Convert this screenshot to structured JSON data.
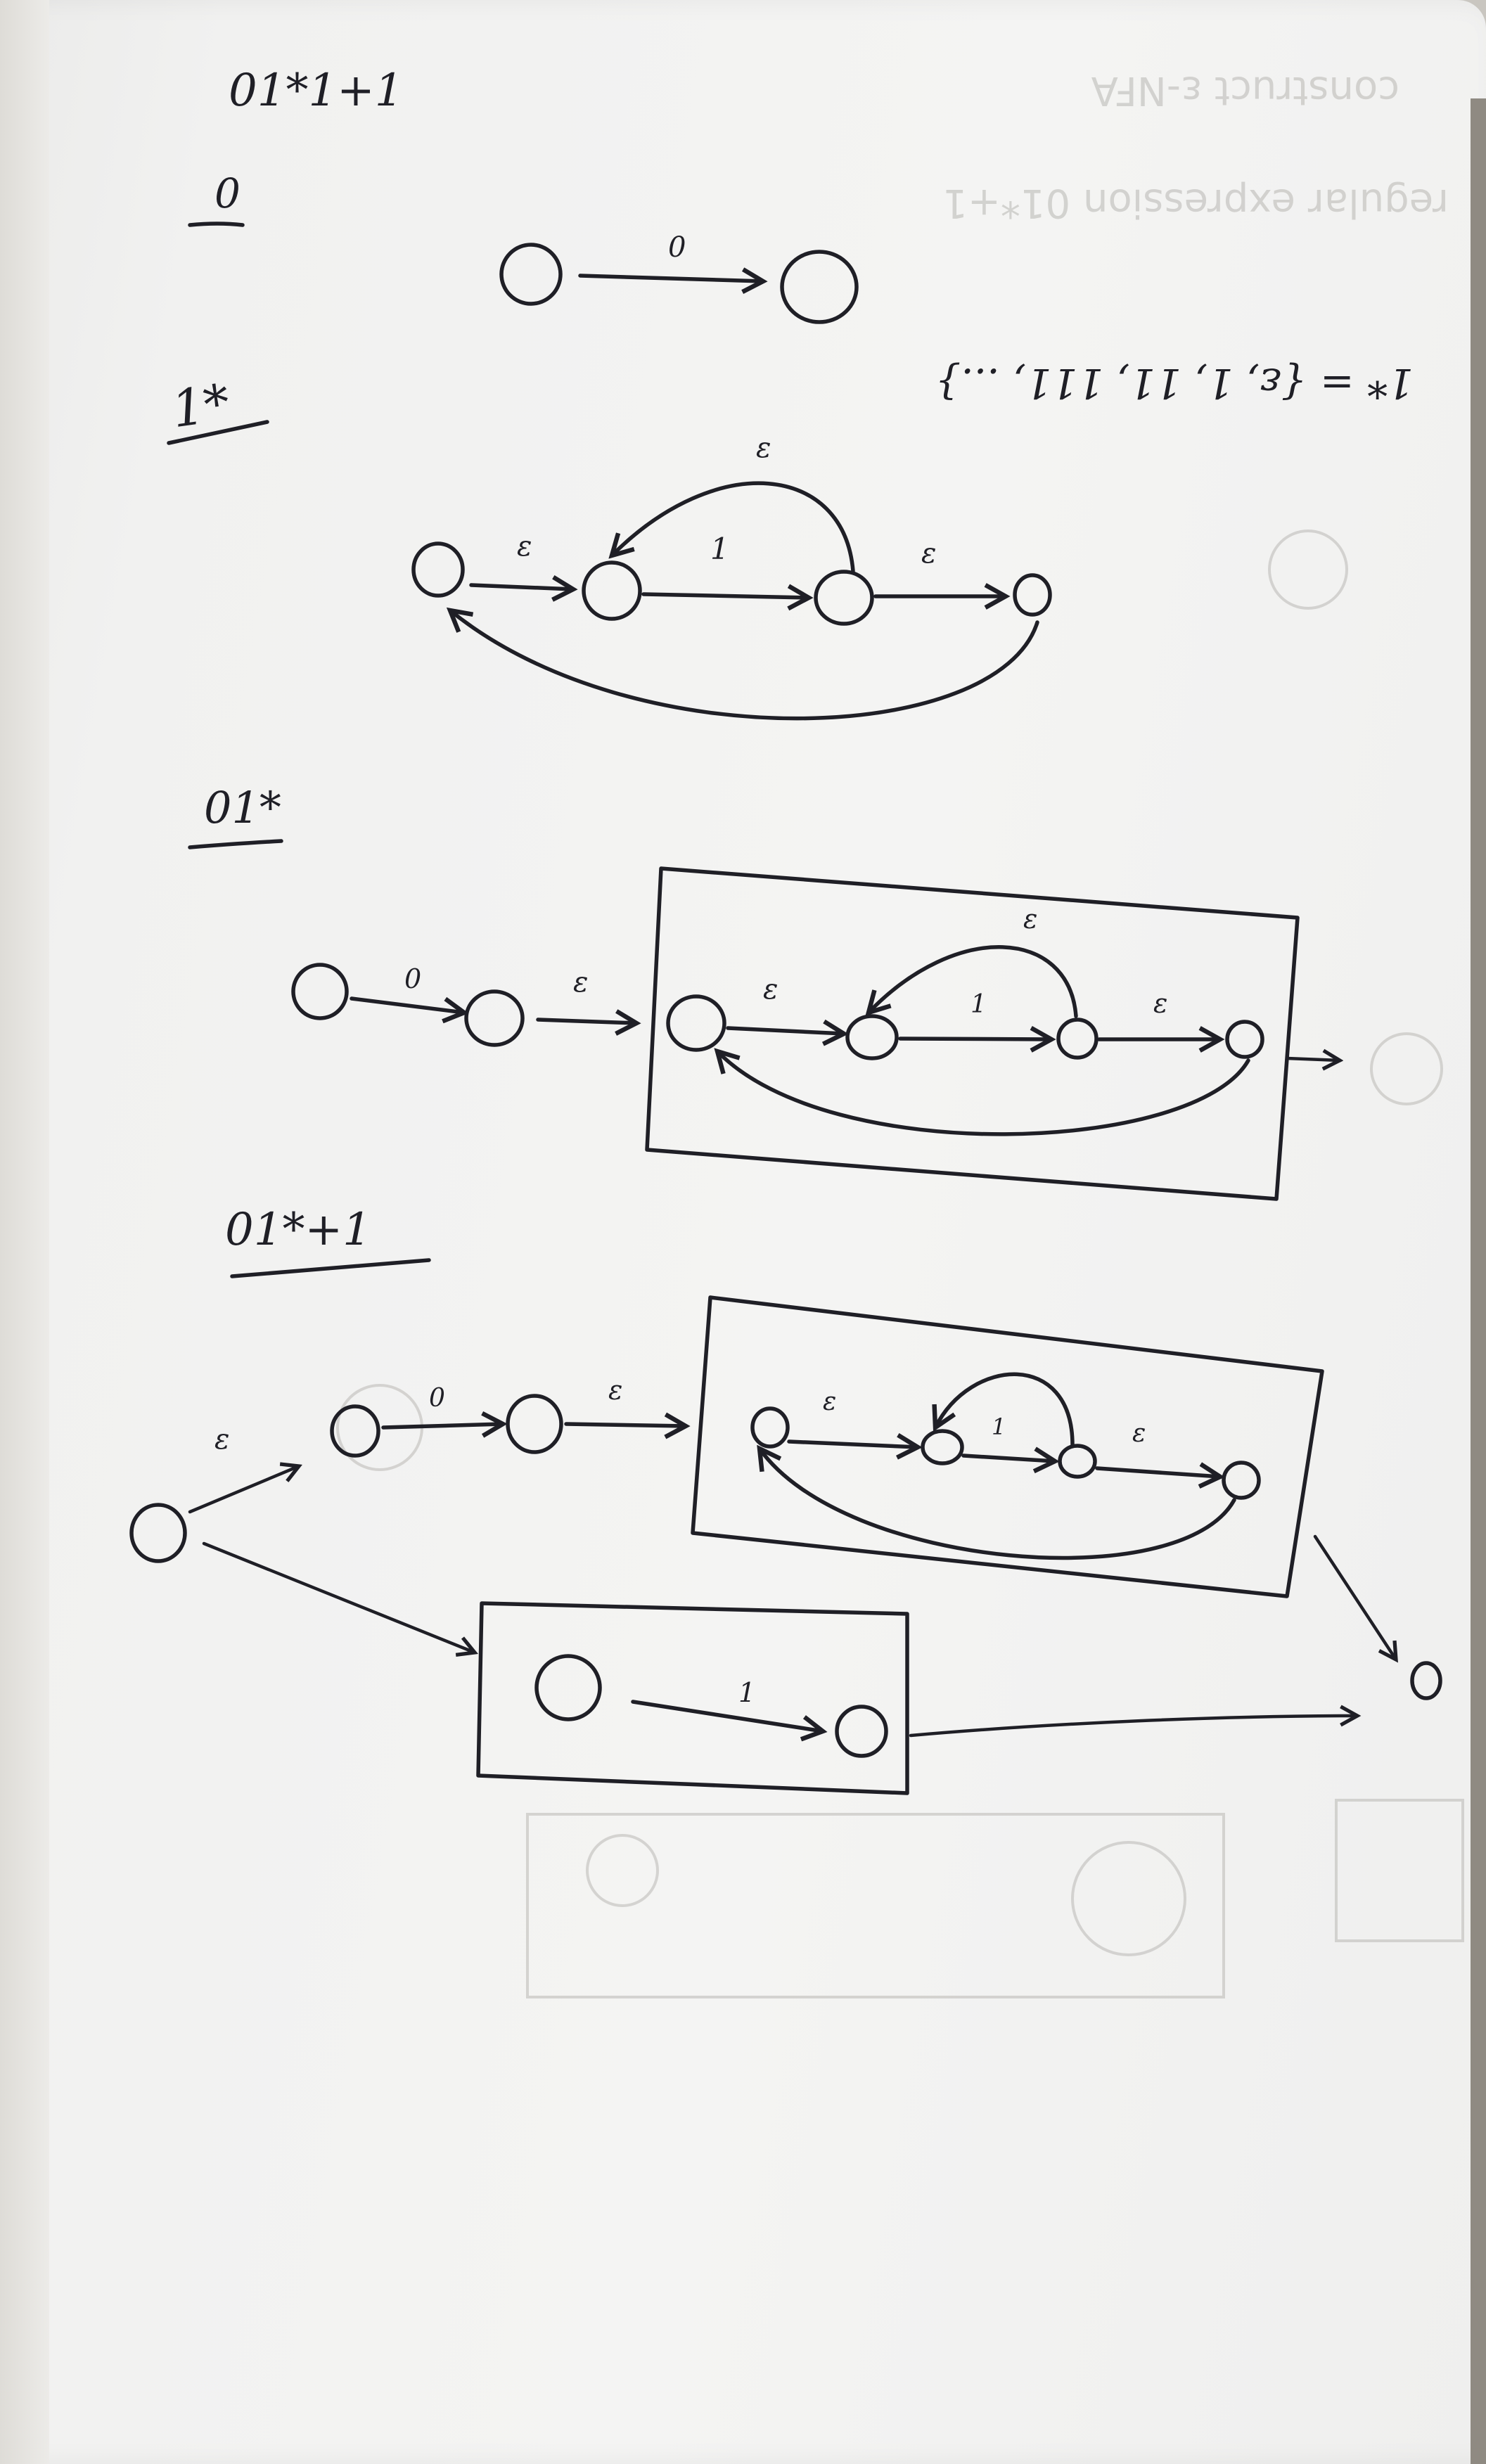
{
  "heading": "01*1+1",
  "ghost_bleed_through": {
    "line1": "construct ε-NFA",
    "line2": "regular expression 01*+1"
  },
  "sections": [
    {
      "title": "0",
      "transitions": [
        "0"
      ]
    },
    {
      "title": "1*",
      "transitions": [
        "ε",
        "1",
        "ε",
        "ε"
      ],
      "side_note": "1* = {ε, 1, 11, 111, ...}"
    },
    {
      "title": "01*",
      "transitions": [
        "0",
        "ε",
        "ε",
        "1",
        "ε",
        "ε"
      ]
    },
    {
      "title": "01*+1",
      "transitions": [
        "ε",
        "0",
        "ε",
        "ε",
        "1",
        "ε",
        "ε",
        "1"
      ]
    }
  ]
}
